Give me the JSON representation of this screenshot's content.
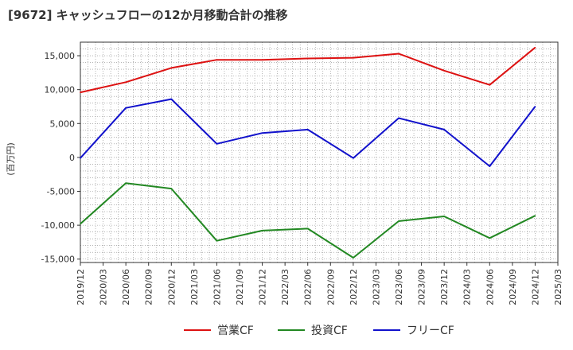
{
  "chart_data": {
    "type": "line",
    "title": "[9672]  キャッシュフローの12か月移動合計の推移",
    "ylabel": "(百万円)",
    "xlabel": "",
    "ylim": [
      -15500,
      17000
    ],
    "yticks": [
      15000,
      10000,
      5000,
      0,
      -5000,
      -10000,
      -15000
    ],
    "ytick_labels": [
      "15,000",
      "10,000",
      "5,000",
      "0",
      "-5,000",
      "-10,000",
      "-15,000"
    ],
    "xticks": [
      "2019/12",
      "2020/03",
      "2020/06",
      "2020/09",
      "2020/12",
      "2021/03",
      "2021/06",
      "2021/09",
      "2021/12",
      "2022/03",
      "2022/06",
      "2022/09",
      "2022/12",
      "2023/03",
      "2023/06",
      "2023/09",
      "2023/12",
      "2024/03",
      "2024/06",
      "2024/09",
      "2024/12",
      "2025/03"
    ],
    "grid": true,
    "legend_position": "bottom",
    "series": [
      {
        "name": "営業CF",
        "color": "#dd1111",
        "points": [
          [
            "2019/12",
            9600
          ],
          [
            "2020/06",
            11100
          ],
          [
            "2020/12",
            13200
          ],
          [
            "2021/06",
            14400
          ],
          [
            "2021/12",
            14400
          ],
          [
            "2022/06",
            14600
          ],
          [
            "2022/12",
            14700
          ],
          [
            "2023/06",
            15300
          ],
          [
            "2023/12",
            12800
          ],
          [
            "2024/06",
            10700
          ],
          [
            "2024/12",
            16200
          ]
        ]
      },
      {
        "name": "投資CF",
        "color": "#228822",
        "points": [
          [
            "2019/12",
            -9800
          ],
          [
            "2020/06",
            -3800
          ],
          [
            "2020/12",
            -4600
          ],
          [
            "2021/06",
            -12300
          ],
          [
            "2021/12",
            -10800
          ],
          [
            "2022/06",
            -10500
          ],
          [
            "2022/12",
            -14800
          ],
          [
            "2023/06",
            -9400
          ],
          [
            "2023/12",
            -8700
          ],
          [
            "2024/06",
            -11900
          ],
          [
            "2024/12",
            -8600
          ]
        ]
      },
      {
        "name": "フリーCF",
        "color": "#1111cc",
        "points": [
          [
            "2019/12",
            -100
          ],
          [
            "2020/06",
            7300
          ],
          [
            "2020/12",
            8600
          ],
          [
            "2021/06",
            2000
          ],
          [
            "2021/12",
            3600
          ],
          [
            "2022/06",
            4100
          ],
          [
            "2022/12",
            -100
          ],
          [
            "2023/06",
            5800
          ],
          [
            "2023/12",
            4100
          ],
          [
            "2024/06",
            -1300
          ],
          [
            "2024/12",
            7500
          ]
        ]
      }
    ]
  }
}
